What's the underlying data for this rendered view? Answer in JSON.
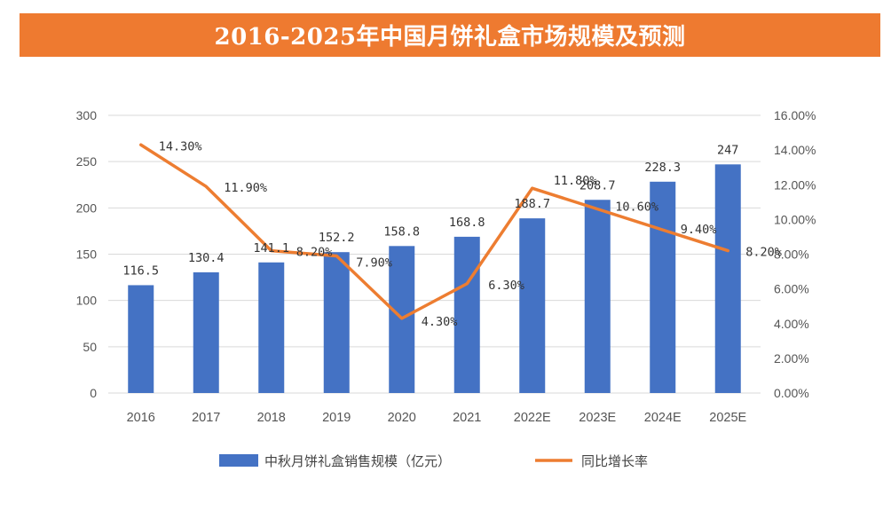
{
  "title": "2016-2025年中国月饼礼盒市场规模及预测",
  "colors": {
    "header_bg": "#ee7a30",
    "bar": "#4472c4",
    "line": "#ed7d31",
    "grid": "#d9d9d9"
  },
  "chart_data": {
    "type": "bar",
    "title": "2016-2025年中国月饼礼盒市场规模及预测",
    "categories": [
      "2016",
      "2017",
      "2018",
      "2019",
      "2020",
      "2021",
      "2022E",
      "2023E",
      "2024E",
      "2025E"
    ],
    "series": [
      {
        "name": "中秋月饼礼盒销售规模（亿元）",
        "type": "bar",
        "axis": "left",
        "values": [
          116.5,
          130.4,
          141.1,
          152.2,
          158.8,
          168.8,
          188.7,
          208.7,
          228.3,
          247
        ],
        "labels": [
          "116.5",
          "130.4",
          "141.1",
          "152.2",
          "158.8",
          "168.8",
          "188.7",
          "208.7",
          "228.3",
          "247"
        ]
      },
      {
        "name": "同比增长率",
        "type": "line",
        "axis": "right",
        "values": [
          14.3,
          11.9,
          8.2,
          7.9,
          4.3,
          6.3,
          11.8,
          10.6,
          9.4,
          8.2
        ],
        "labels": [
          "14.30%",
          "11.90%",
          "8.20%",
          "7.90%",
          "4.30%",
          "6.30%",
          "11.80%",
          "10.60%",
          "9.40%",
          "8.20%"
        ]
      }
    ],
    "y_left": {
      "min": 0,
      "max": 300,
      "ticks": [
        "0",
        "50",
        "100",
        "150",
        "200",
        "250",
        "300"
      ]
    },
    "y_right": {
      "min": 0,
      "max": 16,
      "ticks": [
        "0.00%",
        "2.00%",
        "4.00%",
        "6.00%",
        "8.00%",
        "10.00%",
        "12.00%",
        "14.00%",
        "16.00%"
      ]
    },
    "grid": true,
    "legend_position": "bottom-center"
  }
}
